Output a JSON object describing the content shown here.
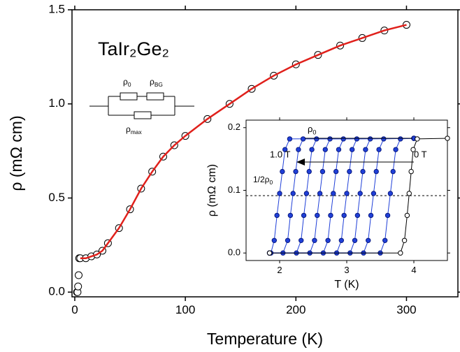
{
  "chart_data": [
    {
      "type": "scatter",
      "formula": "TaIr₂Ge₂",
      "circuit_labels": [
        {
          "base": "ρ",
          "sub": "0"
        },
        {
          "base": "ρ",
          "sub": "BG"
        },
        {
          "base": "ρ",
          "sub": "max"
        }
      ],
      "x_label": "Temperature (K)",
      "y_label": "ρ (mΩ cm)",
      "xlim": [
        -2.5,
        346.5
      ],
      "ylim": [
        -0.025,
        1.5
      ],
      "xticks": [
        0,
        100,
        200,
        300
      ],
      "yticks": [
        {
          "value": 0,
          "label": "0.0"
        },
        {
          "value": 0.5,
          "label": "0.5"
        },
        {
          "value": 1,
          "label": "1.0"
        },
        {
          "value": 1.5,
          "label": "1.5"
        }
      ],
      "series": [
        {
          "color": "#000000",
          "marker": "open-circle",
          "x": [
            2,
            2.5,
            3,
            3.5,
            4,
            5,
            10,
            15,
            20,
            25,
            30,
            40,
            50,
            60,
            70,
            80,
            90,
            100,
            120,
            140,
            160,
            180,
            200,
            220,
            240,
            260,
            280,
            300
          ],
          "values": [
            0,
            0,
            0.03,
            0.09,
            0.18,
            0.18,
            0.18,
            0.19,
            0.2,
            0.22,
            0.26,
            0.34,
            0.44,
            0.55,
            0.64,
            0.72,
            0.78,
            0.83,
            0.92,
            1.0,
            1.08,
            1.15,
            1.21,
            1.26,
            1.31,
            1.35,
            1.39,
            1.42
          ]
        },
        {
          "color": "#e0201b",
          "marker": "line",
          "x": [
            5,
            10,
            15,
            20,
            25,
            30,
            40,
            50,
            60,
            70,
            80,
            90,
            100,
            120,
            140,
            160,
            180,
            200,
            220,
            240,
            260,
            280,
            300
          ],
          "values": [
            0.18,
            0.18,
            0.19,
            0.2,
            0.22,
            0.26,
            0.34,
            0.44,
            0.55,
            0.64,
            0.72,
            0.78,
            0.83,
            0.92,
            1.0,
            1.08,
            1.15,
            1.21,
            1.26,
            1.31,
            1.35,
            1.39,
            1.42
          ]
        }
      ]
    },
    {
      "type": "line",
      "x_label": "T (K)",
      "y_label": "ρ (mΩ cm)",
      "xlim": [
        1.5,
        4.5
      ],
      "ylim": [
        -0.012,
        0.212
      ],
      "xticks": [
        2,
        3,
        4
      ],
      "yticks": [
        {
          "value": 0,
          "label": "0.0"
        },
        {
          "value": 0.1,
          "label": "0.1"
        },
        {
          "value": 0.2,
          "label": "0.2"
        }
      ],
      "rho0_label": {
        "base": "ρ",
        "sub": "0"
      },
      "half_label": {
        "base": "1/2ρ",
        "sub": "0"
      },
      "half_line": 0.0915,
      "field_high": "1.0 T",
      "field_zero": "0 T",
      "series": [
        {
          "color": "#1f3fd8",
          "marker": "filled-circle-line",
          "x": [
            1.85,
            1.87,
            1.92,
            1.96,
            2.0,
            2.04,
            2.08,
            2.15,
            4.0
          ],
          "values": [
            0,
            0,
            0.02,
            0.06,
            0.095,
            0.13,
            0.165,
            0.182,
            0.183
          ]
        },
        {
          "color": "#1f3fd8",
          "marker": "filled-circle-line",
          "x": [
            1.85,
            2.05,
            2.12,
            2.16,
            2.2,
            2.24,
            2.28,
            2.35,
            4.0
          ],
          "values": [
            0,
            0,
            0.02,
            0.06,
            0.095,
            0.13,
            0.165,
            0.182,
            0.183
          ]
        },
        {
          "color": "#1f3fd8",
          "marker": "filled-circle-line",
          "x": [
            1.85,
            2.25,
            2.32,
            2.36,
            2.4,
            2.44,
            2.48,
            2.55,
            4.0
          ],
          "values": [
            0,
            0,
            0.02,
            0.06,
            0.095,
            0.13,
            0.165,
            0.182,
            0.183
          ]
        },
        {
          "color": "#1f3fd8",
          "marker": "filled-circle-line",
          "x": [
            1.85,
            2.45,
            2.52,
            2.56,
            2.6,
            2.64,
            2.68,
            2.75,
            4.0
          ],
          "values": [
            0,
            0,
            0.02,
            0.06,
            0.095,
            0.13,
            0.165,
            0.182,
            0.183
          ]
        },
        {
          "color": "#1f3fd8",
          "marker": "filled-circle-line",
          "x": [
            1.85,
            2.65,
            2.72,
            2.76,
            2.8,
            2.84,
            2.88,
            2.95,
            4.0
          ],
          "values": [
            0,
            0,
            0.02,
            0.06,
            0.095,
            0.13,
            0.165,
            0.182,
            0.183
          ]
        },
        {
          "color": "#1f3fd8",
          "marker": "filled-circle-line",
          "x": [
            1.85,
            2.85,
            2.92,
            2.96,
            3.0,
            3.04,
            3.08,
            3.15,
            4.0
          ],
          "values": [
            0,
            0,
            0.02,
            0.06,
            0.095,
            0.13,
            0.165,
            0.182,
            0.183
          ]
        },
        {
          "color": "#1f3fd8",
          "marker": "filled-circle-line",
          "x": [
            1.85,
            3.05,
            3.12,
            3.16,
            3.2,
            3.24,
            3.28,
            3.35,
            4.0
          ],
          "values": [
            0,
            0,
            0.02,
            0.06,
            0.095,
            0.13,
            0.165,
            0.182,
            0.183
          ]
        },
        {
          "color": "#1f3fd8",
          "marker": "filled-circle-line",
          "x": [
            1.85,
            3.25,
            3.32,
            3.36,
            3.4,
            3.44,
            3.48,
            3.55,
            4.0
          ],
          "values": [
            0,
            0,
            0.02,
            0.06,
            0.095,
            0.13,
            0.165,
            0.182,
            0.183
          ]
        },
        {
          "color": "#1f3fd8",
          "marker": "filled-circle-line",
          "x": [
            1.85,
            3.5,
            3.57,
            3.61,
            3.65,
            3.69,
            3.73,
            3.8,
            4.0
          ],
          "values": [
            0,
            0,
            0.02,
            0.06,
            0.095,
            0.13,
            0.165,
            0.182,
            0.183
          ]
        },
        {
          "color": "#000000",
          "marker": "open-circle-line",
          "x": [
            1.85,
            3.8,
            3.86,
            3.9,
            3.93,
            3.96,
            3.99,
            4.05,
            4.5
          ],
          "values": [
            0,
            0,
            0.02,
            0.06,
            0.095,
            0.13,
            0.165,
            0.182,
            0.183
          ]
        }
      ]
    }
  ]
}
